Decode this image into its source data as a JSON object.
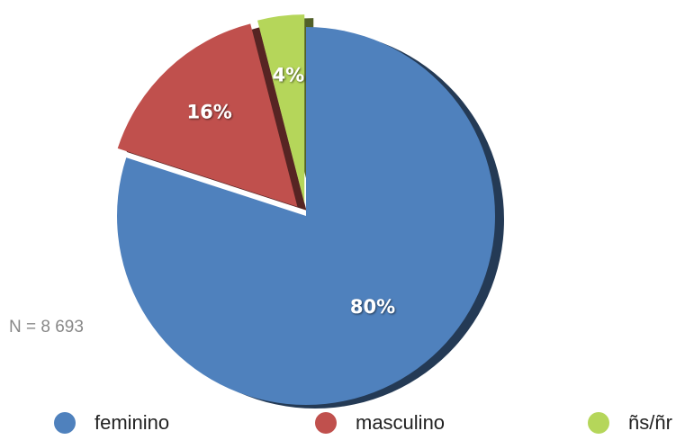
{
  "chart_data": {
    "type": "pie",
    "categories": [
      "feminino",
      "masculino",
      "ñs/ñr"
    ],
    "values": [
      80,
      16,
      4
    ],
    "value_labels": [
      "80%",
      "16%",
      "4%"
    ],
    "colors": [
      "#4f81bd",
      "#c0504d",
      "#b5d65a"
    ],
    "annotation": "N = 8 693",
    "legend": "bottom"
  }
}
